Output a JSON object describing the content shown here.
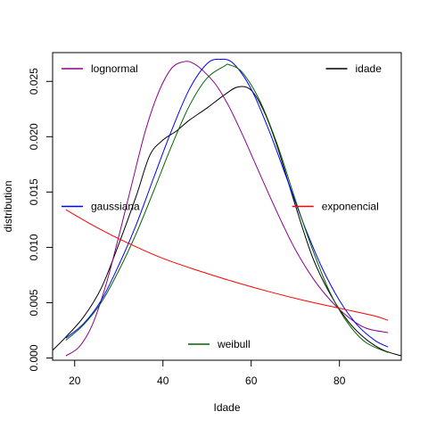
{
  "chart_data": {
    "type": "line",
    "title": "",
    "xlabel": "Idade",
    "ylabel": "distribution",
    "xlim": [
      15,
      94
    ],
    "ylim": [
      -0.0002,
      0.0276
    ],
    "xticks": [
      20,
      40,
      60,
      80
    ],
    "yticks": [
      0.0,
      0.005,
      0.01,
      0.015,
      0.02,
      0.025
    ],
    "ytick_labels": [
      "0.000",
      "0.005",
      "0.010",
      "0.015",
      "0.020",
      "0.025"
    ],
    "grid": false,
    "series": [
      {
        "name": "idade",
        "color": "#000000",
        "x": [
          15,
          18,
          22,
          26,
          30,
          34,
          37,
          40,
          43,
          46,
          50,
          54,
          57,
          60,
          63,
          66,
          70,
          74,
          78,
          82,
          86,
          90,
          94
        ],
        "y": [
          0.0007,
          0.0019,
          0.0037,
          0.0063,
          0.0103,
          0.0147,
          0.0183,
          0.0197,
          0.0205,
          0.0215,
          0.0226,
          0.0238,
          0.0245,
          0.0242,
          0.0222,
          0.019,
          0.0138,
          0.009,
          0.0057,
          0.0033,
          0.0017,
          0.0007,
          0.0002
        ]
      },
      {
        "name": "lognormal",
        "color": "#8B008B",
        "x": [
          18,
          21,
          24,
          27,
          30,
          33,
          36,
          39,
          42,
          45,
          47,
          49,
          52,
          55,
          58,
          61,
          64,
          67,
          70,
          74,
          78,
          82,
          86,
          91
        ],
        "y": [
          0.0002,
          0.001,
          0.003,
          0.0065,
          0.011,
          0.0158,
          0.0205,
          0.024,
          0.0262,
          0.0268,
          0.0266,
          0.026,
          0.0247,
          0.0227,
          0.0202,
          0.0175,
          0.0148,
          0.0122,
          0.0098,
          0.0072,
          0.0052,
          0.0037,
          0.0027,
          0.0023
        ]
      },
      {
        "name": "gaussiana",
        "color": "#0000FF",
        "x": [
          18,
          22,
          26,
          30,
          34,
          38,
          42,
          46,
          50,
          53,
          56,
          60,
          64,
          68,
          72,
          76,
          80,
          84,
          88,
          91
        ],
        "y": [
          0.0018,
          0.0031,
          0.0052,
          0.0084,
          0.0121,
          0.0164,
          0.0206,
          0.0243,
          0.0266,
          0.027,
          0.0266,
          0.0243,
          0.0206,
          0.0163,
          0.012,
          0.0082,
          0.0052,
          0.003,
          0.0016,
          0.001
        ]
      },
      {
        "name": "weibull",
        "color": "#006400",
        "x": [
          18,
          22,
          26,
          30,
          34,
          38,
          42,
          46,
          50,
          54,
          55,
          58,
          62,
          66,
          70,
          74,
          78,
          82,
          86,
          91
        ],
        "y": [
          0.0016,
          0.003,
          0.005,
          0.0079,
          0.0113,
          0.0152,
          0.0192,
          0.0228,
          0.0253,
          0.0264,
          0.0265,
          0.0258,
          0.0232,
          0.0192,
          0.0143,
          0.0097,
          0.0058,
          0.0031,
          0.0014,
          0.0005
        ]
      },
      {
        "name": "exponencial",
        "color": "#FF0000",
        "x": [
          18,
          25,
          32,
          40,
          48,
          56,
          64,
          72,
          80,
          88,
          91
        ],
        "y": [
          0.0134,
          0.0118,
          0.0104,
          0.009,
          0.0079,
          0.0069,
          0.006,
          0.0052,
          0.0045,
          0.0038,
          0.0034
        ]
      }
    ],
    "legends": [
      {
        "label": "lognormal",
        "color": "#8B008B",
        "placement": "top-left"
      },
      {
        "label": "idade",
        "color": "#000000",
        "placement": "top-right"
      },
      {
        "label": "gaussiana",
        "color": "#0000FF",
        "placement": "left"
      },
      {
        "label": "exponencial",
        "color": "#FF0000",
        "placement": "right"
      },
      {
        "label": "weibull",
        "color": "#006400",
        "placement": "bottom"
      }
    ]
  }
}
